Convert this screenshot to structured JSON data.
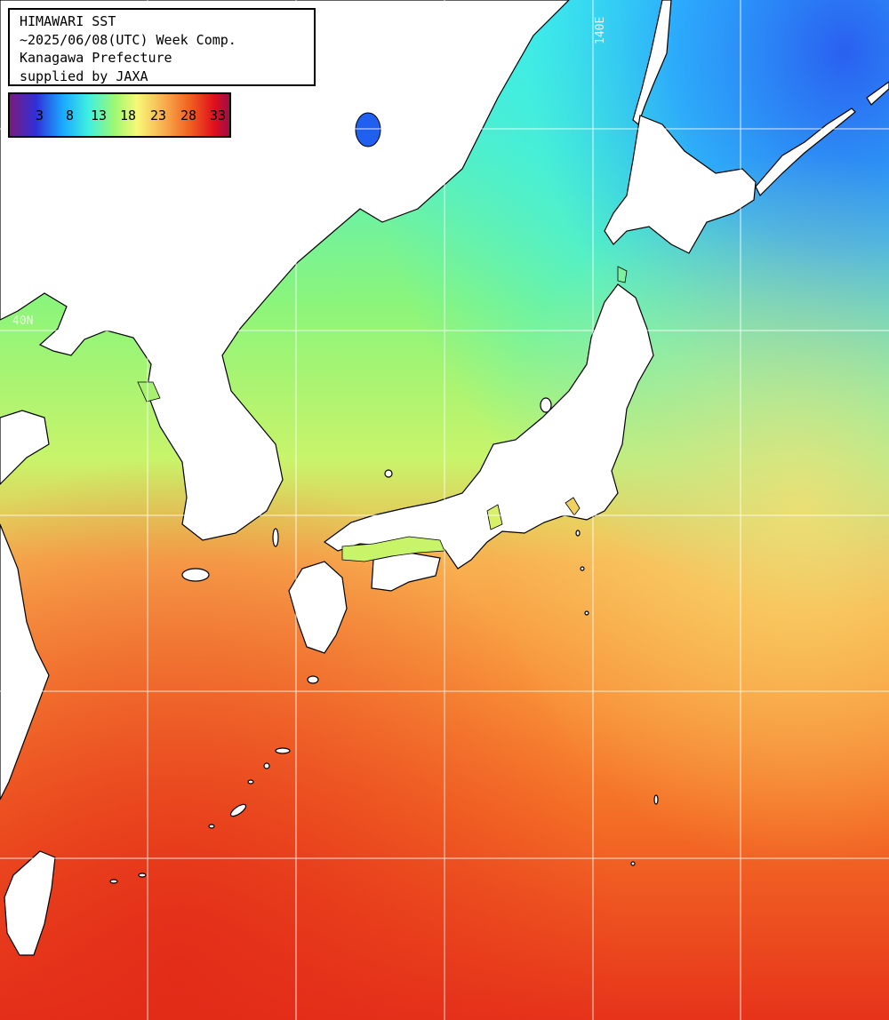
{
  "info": {
    "line1": "HIMAWARI SST",
    "line2": "~2025/06/08(UTC) Week Comp.",
    "line3": "Kanagawa Prefecture",
    "line4": "supplied by JAXA"
  },
  "legend": {
    "labels": [
      "3",
      "8",
      "13",
      "18",
      "23",
      "28",
      "33"
    ],
    "colors": [
      "#6a1b7a",
      "#2b3fd9",
      "#1fb6ff",
      "#46f5d6",
      "#9dfa6e",
      "#f7f77a",
      "#f9a64a",
      "#f06a1e",
      "#e0151c",
      "#a80f3c"
    ]
  },
  "gridlabels": {
    "lon": "140E",
    "lat": "40N"
  },
  "colors": {
    "land": "#ffffff",
    "coast": "#000000",
    "grid": "#ffffff",
    "sea_cold": "#2f6cf0",
    "sea_cool": "#33f0f5",
    "sea_mild": "#8ef57a",
    "sea_warm": "#f8d460",
    "sea_hot": "#f07020",
    "sea_hotter": "#e8341c"
  }
}
